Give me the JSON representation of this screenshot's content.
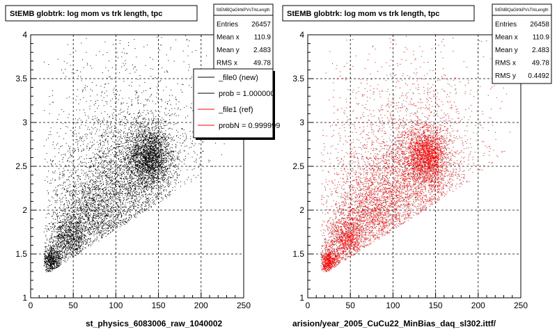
{
  "chart_data": [
    {
      "type": "scatter",
      "title": "StEMB globtrk: log mom vs trk length, tpc",
      "xlabel": "st_physics_6083006_raw_1040002",
      "xlim": [
        0,
        250
      ],
      "ylim": [
        1,
        4
      ],
      "x_ticks": [
        "0",
        "50",
        "100",
        "150",
        "200",
        "250"
      ],
      "y_ticks": [
        "1",
        "1.5",
        "2",
        "2.5",
        "3",
        "3.5",
        "4"
      ],
      "grid": true,
      "color": "#000000",
      "stats": {
        "name": "StEMBQaGlrtkPVsTrkLength",
        "rows": [
          {
            "label": "Entries",
            "value": "26457"
          },
          {
            "label": "Mean x",
            "value": "110.9"
          },
          {
            "label": "Mean y",
            "value": "2.483"
          },
          {
            "label": "RMS x",
            "value": "49.78"
          }
        ]
      },
      "legend": {
        "placement": "top-right",
        "entries": [
          {
            "label": "_file0 (new)",
            "color": "#000000"
          },
          {
            "label": "prob = 1.000000",
            "color": "#000000"
          },
          {
            "label": "_file1 (ref)",
            "color": "#ff0000"
          },
          {
            "label": "probN = 0.999999",
            "color": "#ff0000"
          }
        ]
      },
      "clusters": [
        {
          "cx": 140,
          "cy": 2.62,
          "sx": 11,
          "sy": 0.16,
          "weight": 0.18
        },
        {
          "cx": 130,
          "cy": 2.5,
          "sx": 26,
          "sy": 0.3,
          "weight": 0.18
        },
        {
          "cx": 95,
          "cy": 2.28,
          "sx": 40,
          "sy": 0.4,
          "weight": 0.2
        },
        {
          "cx": 75,
          "cy": 1.95,
          "sx": 22,
          "sy": 0.2,
          "weight": 0.14
        },
        {
          "cx": 45,
          "cy": 1.68,
          "sx": 12,
          "sy": 0.13,
          "weight": 0.12
        },
        {
          "cx": 25,
          "cy": 1.42,
          "sx": 6,
          "sy": 0.08,
          "weight": 0.08
        },
        {
          "cx": 120,
          "cy": 2.9,
          "sx": 55,
          "sy": 0.55,
          "weight": 0.1
        }
      ]
    },
    {
      "type": "scatter",
      "title": "StEMB globtrk: log mom vs trk length, tpc",
      "xlabel": "arision/year_2005_CuCu22_MinBias_daq_sl302.ittf/",
      "xlim": [
        0,
        250
      ],
      "ylim": [
        1,
        4
      ],
      "x_ticks": [
        "0",
        "50",
        "100",
        "150",
        "200",
        "250"
      ],
      "y_ticks": [
        "1",
        "1.5",
        "2",
        "2.5",
        "3",
        "3.5",
        "4"
      ],
      "grid": true,
      "color": "#ff0000",
      "stats": {
        "name": "StEMBQaGlrtkPVsTrkLength",
        "rows": [
          {
            "label": "Entries",
            "value": "26458"
          },
          {
            "label": "Mean x",
            "value": "110.9"
          },
          {
            "label": "Mean y",
            "value": "2.483"
          },
          {
            "label": "RMS x",
            "value": "49.78"
          },
          {
            "label": "RMS y",
            "value": "0.4492"
          }
        ]
      },
      "clusters": [
        {
          "cx": 140,
          "cy": 2.62,
          "sx": 11,
          "sy": 0.16,
          "weight": 0.18
        },
        {
          "cx": 130,
          "cy": 2.5,
          "sx": 26,
          "sy": 0.3,
          "weight": 0.18
        },
        {
          "cx": 95,
          "cy": 2.28,
          "sx": 40,
          "sy": 0.4,
          "weight": 0.2
        },
        {
          "cx": 75,
          "cy": 1.95,
          "sx": 22,
          "sy": 0.2,
          "weight": 0.14
        },
        {
          "cx": 45,
          "cy": 1.68,
          "sx": 12,
          "sy": 0.13,
          "weight": 0.12
        },
        {
          "cx": 25,
          "cy": 1.42,
          "sx": 6,
          "sy": 0.08,
          "weight": 0.08
        },
        {
          "cx": 120,
          "cy": 2.9,
          "sx": 55,
          "sy": 0.55,
          "weight": 0.1
        }
      ]
    }
  ]
}
